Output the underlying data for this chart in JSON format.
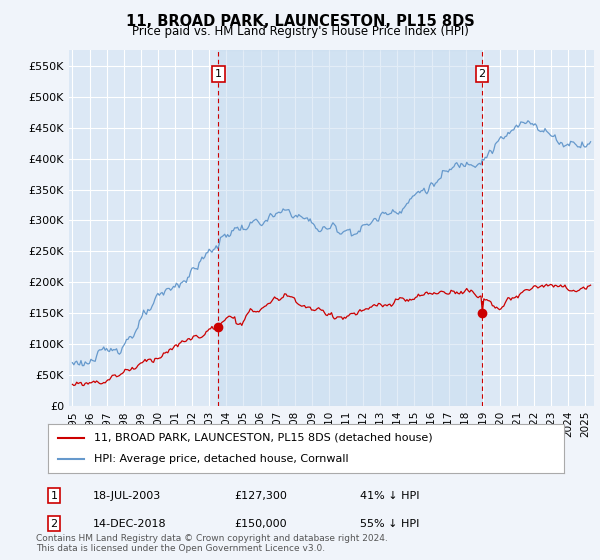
{
  "title": "11, BROAD PARK, LAUNCESTON, PL15 8DS",
  "subtitle": "Price paid vs. HM Land Registry's House Price Index (HPI)",
  "legend_label_red": "11, BROAD PARK, LAUNCESTON, PL15 8DS (detached house)",
  "legend_label_blue": "HPI: Average price, detached house, Cornwall",
  "sale1_label": "1",
  "sale1_date": "18-JUL-2003",
  "sale1_price": "£127,300",
  "sale1_pct": "41% ↓ HPI",
  "sale1_year": 2003.54,
  "sale1_value": 127300,
  "sale2_label": "2",
  "sale2_date": "14-DEC-2018",
  "sale2_price": "£150,000",
  "sale2_pct": "55% ↓ HPI",
  "sale2_year": 2018.95,
  "sale2_value": 150000,
  "footer": "Contains HM Land Registry data © Crown copyright and database right 2024.\nThis data is licensed under the Open Government Licence v3.0.",
  "ylim": [
    0,
    575000
  ],
  "yticks": [
    0,
    50000,
    100000,
    150000,
    200000,
    250000,
    300000,
    350000,
    400000,
    450000,
    500000,
    550000
  ],
  "xlim_start": 1994.8,
  "xlim_end": 2025.5,
  "bg_color": "#dce8f5",
  "plot_bg": "#dce8f5",
  "grid_color": "#ffffff",
  "red_color": "#cc0000",
  "blue_color": "#6699cc",
  "shade_color": "#c8ddf0"
}
